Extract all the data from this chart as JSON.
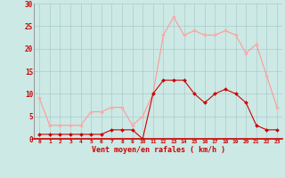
{
  "hours": [
    0,
    1,
    2,
    3,
    4,
    5,
    6,
    7,
    8,
    9,
    10,
    11,
    12,
    13,
    14,
    15,
    16,
    17,
    18,
    19,
    20,
    21,
    22,
    23
  ],
  "vent_moyen": [
    1,
    1,
    1,
    1,
    1,
    1,
    1,
    2,
    2,
    2,
    0,
    10,
    13,
    13,
    13,
    10,
    8,
    10,
    11,
    10,
    8,
    3,
    2,
    2
  ],
  "rafales": [
    9,
    3,
    3,
    3,
    3,
    6,
    6,
    7,
    7,
    3,
    5,
    10,
    23,
    27,
    23,
    24,
    23,
    23,
    24,
    23,
    19,
    21,
    14,
    7
  ],
  "bg_color": "#cce9e5",
  "grid_color": "#aacccc",
  "line_moyen_color": "#cc0000",
  "line_rafales_color": "#ff9999",
  "marker_moyen_color": "#cc0000",
  "marker_rafales_color": "#ffaaaa",
  "xlabel": "Vent moyen/en rafales ( km/h )",
  "xlabel_color": "#cc0000",
  "tick_color": "#cc0000",
  "axis_color": "#cc0000",
  "ylim": [
    0,
    30
  ],
  "yticks": [
    0,
    5,
    10,
    15,
    20,
    25,
    30
  ],
  "xlim": [
    -0.5,
    23.5
  ]
}
